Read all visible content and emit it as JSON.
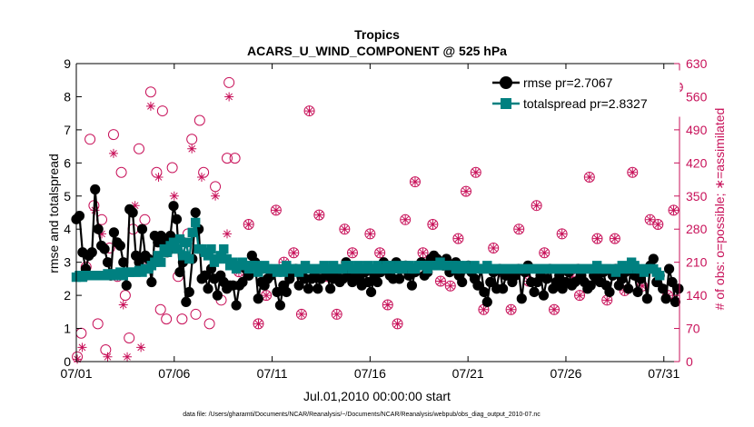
{
  "colors": {
    "rmse": "#000000",
    "spread": "#008080",
    "obs": "#c8125a"
  },
  "chart_data": {
    "type": "line",
    "title": "Tropics",
    "subtitle": "ACARS_U_WIND_COMPONENT @ 525 hPa",
    "xlabel": "Jul.01,2010 00:00:00 start",
    "ylabel": "rmse and totalspread",
    "y2label": "# of obs: o=possible; ∗=assimilated",
    "xlim": [
      0,
      30.8
    ],
    "ylim": [
      0,
      9
    ],
    "y2lim": [
      0,
      630
    ],
    "xticks": [
      0,
      5,
      10,
      15,
      20,
      25,
      30
    ],
    "xticklabels": [
      "07/01",
      "07/06",
      "07/11",
      "07/16",
      "07/21",
      "07/26",
      "07/31"
    ],
    "yticks": [
      "0",
      "1",
      "2",
      "3",
      "4",
      "5",
      "6",
      "7",
      "8",
      "9"
    ],
    "y2ticks": [
      "0",
      "70",
      "140",
      "210",
      "280",
      "350",
      "420",
      "490",
      "560",
      "630"
    ],
    "legend_position": "top-right",
    "series": [
      {
        "name": "rmse",
        "legend": "rmse pr=2.7067",
        "values": [
          4.3,
          4.4,
          3.3,
          2.8,
          3.2,
          3.3,
          5.2,
          4.0,
          3.5,
          3.4,
          3.0,
          2.6,
          3.9,
          3.6,
          3.5,
          3.0,
          2.3,
          4.6,
          4.5,
          3.2,
          3.0,
          4.0,
          3.2,
          3.1,
          2.4,
          3.8,
          3.6,
          3.8,
          3.6,
          3.3,
          3.8,
          4.7,
          4.3,
          2.7,
          3.0,
          1.8,
          2.1,
          3.1,
          4.5,
          4.0,
          2.5,
          2.6,
          2.2,
          2.8,
          2.5,
          2.0,
          2.6,
          2.4,
          2.2,
          2.3,
          2.3,
          1.7,
          2.3,
          2.4,
          2.8,
          2.6,
          3.2,
          3.0,
          1.9,
          2.4,
          2.3,
          2.5,
          2.6,
          2.7,
          2.1,
          1.7,
          2.3,
          2.1,
          2.5,
          2.7,
          2.8,
          2.3,
          2.6,
          2.5,
          2.2,
          2.5,
          2.6,
          2.2,
          2.5,
          2.8,
          2.6,
          2.2,
          2.5,
          2.7,
          2.4,
          2.5,
          3.0,
          2.6,
          2.4,
          2.7,
          2.5,
          2.3,
          2.7,
          2.4,
          2.1,
          2.6,
          2.4,
          2.7,
          3.0,
          2.8,
          2.6,
          2.5,
          3.0,
          2.5,
          2.8,
          2.9,
          2.6,
          2.3,
          2.7,
          2.9,
          3.0,
          2.6,
          2.7,
          3.1,
          3.2,
          3.1,
          3.0,
          2.9,
          3.1,
          2.7,
          2.8,
          3.0,
          2.6,
          2.4,
          2.8,
          2.9,
          2.7,
          2.5,
          2.3,
          2.8,
          2.1,
          1.8,
          2.4,
          2.7,
          2.2,
          2.8,
          2.2,
          2.6,
          2.7,
          2.4,
          2.6,
          2.8,
          1.9,
          2.7,
          2.9,
          2.4,
          2.1,
          2.4,
          2.6,
          2.0,
          2.5,
          2.8,
          2.2,
          2.4,
          2.6,
          2.2,
          2.4,
          2.7,
          2.3,
          2.4,
          2.8,
          2.6,
          2.4,
          2.2,
          2.3,
          2.6,
          2.5,
          2.4,
          2.7,
          2.3,
          2.1,
          2.6,
          2.8,
          2.3,
          2.5,
          2.7,
          2.2,
          2.9,
          2.6,
          2.1,
          2.5,
          2.7,
          1.9,
          2.9,
          3.1,
          2.4,
          2.6,
          2.2,
          1.9,
          2.8,
          2.4,
          1.8,
          2.2
        ]
      },
      {
        "name": "totalspread",
        "legend": "totalspread pr=2.8327",
        "values": [
          2.55,
          2.6,
          2.55,
          2.6,
          2.6,
          2.6,
          2.6,
          2.6,
          2.6,
          2.6,
          2.65,
          2.6,
          2.65,
          2.6,
          2.7,
          2.6,
          2.7,
          2.7,
          2.7,
          2.7,
          2.75,
          2.7,
          2.8,
          2.8,
          2.9,
          3.0,
          3.2,
          3.0,
          3.4,
          3.3,
          3.5,
          3.6,
          3.4,
          3.7,
          3.2,
          3.6,
          3.1,
          3.9,
          4.2,
          3.4,
          3.4,
          3.3,
          3.2,
          3.4,
          3.0,
          3.1,
          3.2,
          3.4,
          3.1,
          2.9,
          3.0,
          2.8,
          2.9,
          3.0,
          2.9,
          2.8,
          2.9,
          2.9,
          2.7,
          2.8,
          2.9,
          2.8,
          2.8,
          2.8,
          2.7,
          2.8,
          2.7,
          2.9,
          2.8,
          2.8,
          2.8,
          2.7,
          2.8,
          2.9,
          2.8,
          2.8,
          2.8,
          2.8,
          2.8,
          2.9,
          2.8,
          2.8,
          2.9,
          2.8,
          2.8,
          2.8,
          2.9,
          2.9,
          2.8,
          2.8,
          2.9,
          2.8,
          2.8,
          2.9,
          2.8,
          2.8,
          2.9,
          2.8,
          2.8,
          2.9,
          2.9,
          2.8,
          2.8,
          2.9,
          2.8,
          2.9,
          2.9,
          2.8,
          2.8,
          2.9,
          2.9,
          2.9,
          2.8,
          2.9,
          2.9,
          2.9,
          3.0,
          2.9,
          2.9,
          2.9,
          2.9,
          2.8,
          2.9,
          2.8,
          2.9,
          2.8,
          2.8,
          2.9,
          2.8,
          2.8,
          2.8,
          2.9,
          2.8,
          2.8,
          2.8,
          2.8,
          2.8,
          2.8,
          2.8,
          2.8,
          2.8,
          2.8,
          2.8,
          2.8,
          2.8,
          2.8,
          2.8,
          2.8,
          2.8,
          2.8,
          2.8,
          2.8,
          2.8,
          2.8,
          2.8,
          2.8,
          2.8,
          2.8,
          2.8,
          2.8,
          2.8,
          2.8,
          2.8,
          2.8,
          2.8,
          2.8,
          2.9,
          2.8,
          2.8,
          2.8,
          2.8,
          2.8,
          2.7,
          2.8,
          2.9,
          2.8,
          2.8,
          3.0,
          2.9,
          2.8,
          2.8,
          2.7,
          2.8,
          2.8,
          2.8,
          2.7,
          2.6
        ]
      }
    ],
    "obs_possible": [
      {
        "x": 0.05,
        "y": 10
      },
      {
        "x": 0.25,
        "y": 60
      },
      {
        "x": 0.5,
        "y": 200
      },
      {
        "x": 0.7,
        "y": 470
      },
      {
        "x": 0.9,
        "y": 330
      },
      {
        "x": 1.1,
        "y": 80
      },
      {
        "x": 1.3,
        "y": 300
      },
      {
        "x": 1.5,
        "y": 25
      },
      {
        "x": 1.7,
        "y": 240
      },
      {
        "x": 1.9,
        "y": 480
      },
      {
        "x": 2.1,
        "y": 180
      },
      {
        "x": 2.3,
        "y": 400
      },
      {
        "x": 2.5,
        "y": 140
      },
      {
        "x": 2.7,
        "y": 50
      },
      {
        "x": 2.9,
        "y": 280
      },
      {
        "x": 3.2,
        "y": 450
      },
      {
        "x": 3.5,
        "y": 300
      },
      {
        "x": 3.8,
        "y": 570
      },
      {
        "x": 4.1,
        "y": 400
      },
      {
        "x": 4.3,
        "y": 110
      },
      {
        "x": 4.4,
        "y": 530
      },
      {
        "x": 4.6,
        "y": 90
      },
      {
        "x": 4.9,
        "y": 410
      },
      {
        "x": 5.2,
        "y": 180
      },
      {
        "x": 5.4,
        "y": 90
      },
      {
        "x": 5.7,
        "y": 270
      },
      {
        "x": 5.9,
        "y": 470
      },
      {
        "x": 6.1,
        "y": 100
      },
      {
        "x": 6.3,
        "y": 510
      },
      {
        "x": 6.5,
        "y": 400
      },
      {
        "x": 6.8,
        "y": 80
      },
      {
        "x": 7.1,
        "y": 370
      },
      {
        "x": 7.4,
        "y": 130
      },
      {
        "x": 7.7,
        "y": 430
      },
      {
        "x": 7.8,
        "y": 590
      },
      {
        "x": 8.1,
        "y": 430
      }
    ],
    "obs_combined": [
      {
        "x": 8.3,
        "y": 190
      },
      {
        "x": 8.8,
        "y": 290
      },
      {
        "x": 9.3,
        "y": 80
      },
      {
        "x": 9.7,
        "y": 140
      },
      {
        "x": 10.2,
        "y": 320
      },
      {
        "x": 10.6,
        "y": 210
      },
      {
        "x": 11.1,
        "y": 230
      },
      {
        "x": 11.5,
        "y": 100
      },
      {
        "x": 11.9,
        "y": 530
      },
      {
        "x": 12.4,
        "y": 310
      },
      {
        "x": 12.8,
        "y": 180
      },
      {
        "x": 13.3,
        "y": 100
      },
      {
        "x": 13.7,
        "y": 280
      },
      {
        "x": 14.1,
        "y": 230
      },
      {
        "x": 14.6,
        "y": 200
      },
      {
        "x": 15.0,
        "y": 270
      },
      {
        "x": 15.5,
        "y": 230
      },
      {
        "x": 15.9,
        "y": 120
      },
      {
        "x": 16.4,
        "y": 80
      },
      {
        "x": 16.8,
        "y": 300
      },
      {
        "x": 17.3,
        "y": 380
      },
      {
        "x": 17.7,
        "y": 230
      },
      {
        "x": 18.2,
        "y": 290
      },
      {
        "x": 18.6,
        "y": 170
      },
      {
        "x": 19.1,
        "y": 160
      },
      {
        "x": 19.5,
        "y": 260
      },
      {
        "x": 19.9,
        "y": 360
      },
      {
        "x": 20.4,
        "y": 400
      },
      {
        "x": 20.8,
        "y": 110
      },
      {
        "x": 21.3,
        "y": 240
      },
      {
        "x": 21.7,
        "y": 190
      },
      {
        "x": 22.2,
        "y": 110
      },
      {
        "x": 22.6,
        "y": 280
      },
      {
        "x": 23.1,
        "y": 170
      },
      {
        "x": 23.5,
        "y": 330
      },
      {
        "x": 23.9,
        "y": 230
      },
      {
        "x": 24.4,
        "y": 110
      },
      {
        "x": 24.8,
        "y": 270
      },
      {
        "x": 25.3,
        "y": 180
      },
      {
        "x": 25.7,
        "y": 140
      },
      {
        "x": 26.2,
        "y": 390
      },
      {
        "x": 26.6,
        "y": 260
      },
      {
        "x": 27.1,
        "y": 130
      },
      {
        "x": 27.5,
        "y": 260
      },
      {
        "x": 28.0,
        "y": 150
      },
      {
        "x": 28.4,
        "y": 400
      },
      {
        "x": 28.9,
        "y": 160
      },
      {
        "x": 29.3,
        "y": 300
      },
      {
        "x": 29.7,
        "y": 290
      },
      {
        "x": 30.2,
        "y": 140
      },
      {
        "x": 30.5,
        "y": 320
      },
      {
        "x": 30.7,
        "y": 580
      }
    ],
    "obs_assimilated_only": [
      {
        "x": 0.05,
        "y": 5
      },
      {
        "x": 0.3,
        "y": 30
      },
      {
        "x": 0.55,
        "y": 180
      },
      {
        "x": 0.95,
        "y": 320
      },
      {
        "x": 1.3,
        "y": 270
      },
      {
        "x": 1.6,
        "y": 10
      },
      {
        "x": 1.9,
        "y": 440
      },
      {
        "x": 2.1,
        "y": 180
      },
      {
        "x": 2.4,
        "y": 120
      },
      {
        "x": 2.6,
        "y": 10
      },
      {
        "x": 3.0,
        "y": 330
      },
      {
        "x": 3.3,
        "y": 30
      },
      {
        "x": 3.6,
        "y": 210
      },
      {
        "x": 3.8,
        "y": 540
      },
      {
        "x": 4.2,
        "y": 390
      },
      {
        "x": 5.0,
        "y": 350
      },
      {
        "x": 5.7,
        "y": 250
      },
      {
        "x": 5.9,
        "y": 450
      },
      {
        "x": 6.4,
        "y": 390
      },
      {
        "x": 7.1,
        "y": 350
      },
      {
        "x": 7.7,
        "y": 270
      },
      {
        "x": 7.8,
        "y": 560
      },
      {
        "x": 8.3,
        "y": 200
      }
    ]
  },
  "footer": "data file: /Users/gharamti/Documents/NCAR/Reanalysis/~/Documents/NCAR/Reanalysis/webpub/obs_diag_output_2010-07.nc"
}
